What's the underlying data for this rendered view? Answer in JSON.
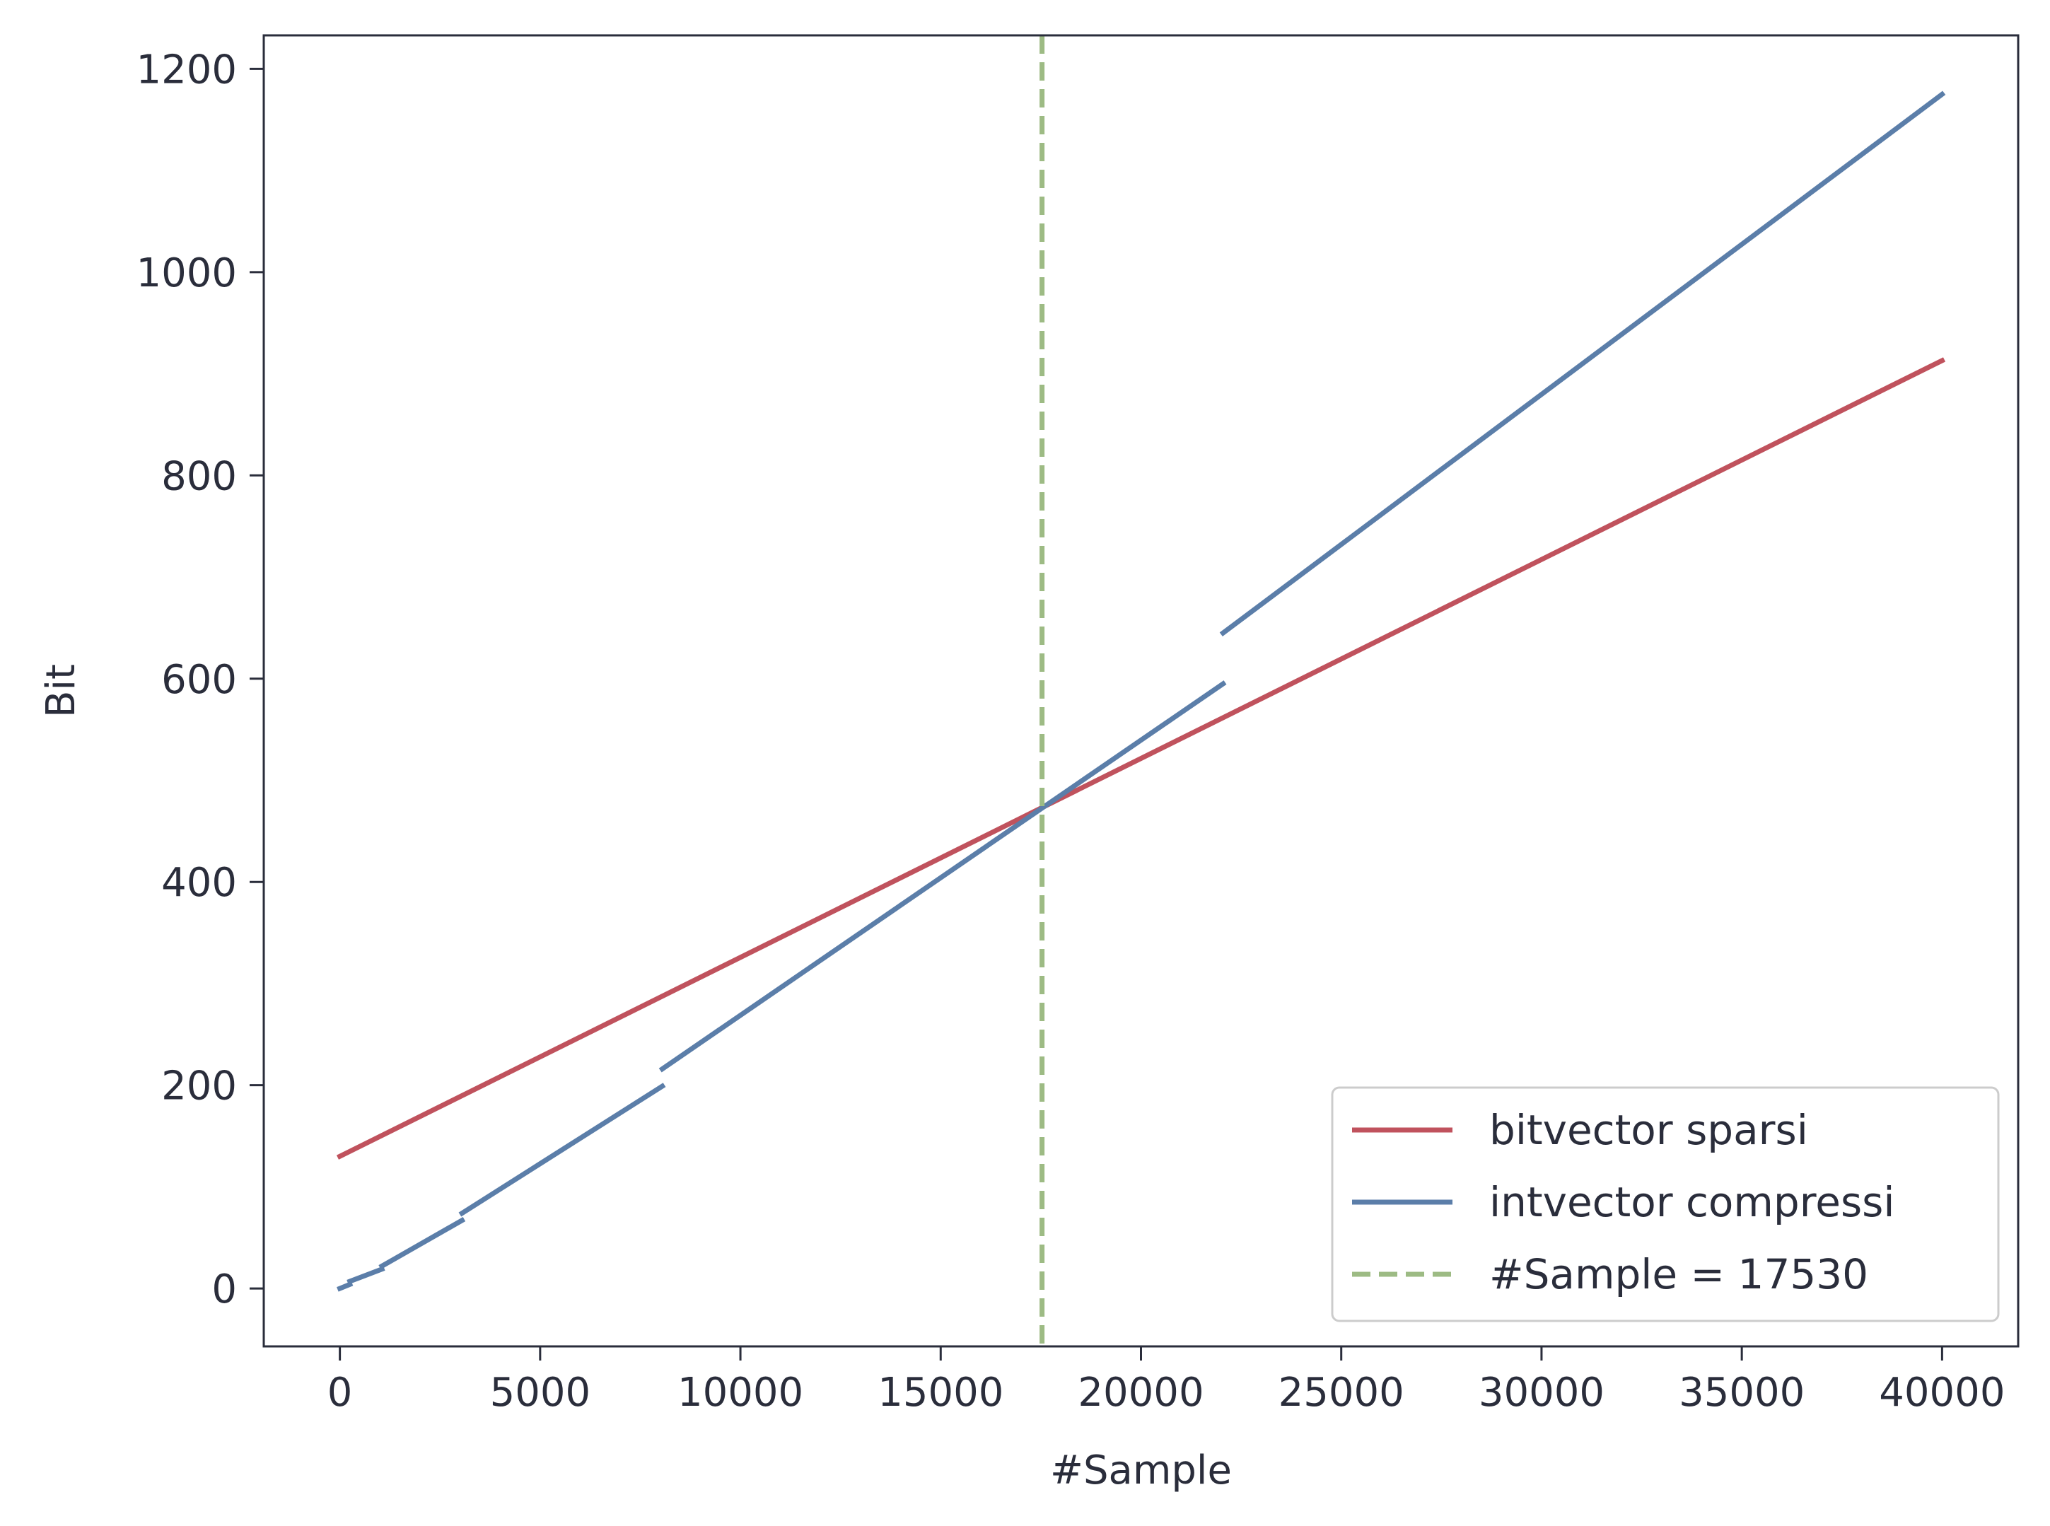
{
  "chart_data": {
    "type": "line",
    "title": "",
    "xlabel": "#Sample",
    "ylabel": "Bit",
    "xlim": [
      -1900,
      41900
    ],
    "ylim": [
      -57,
      1233
    ],
    "xticks": [
      0,
      5000,
      10000,
      15000,
      20000,
      25000,
      30000,
      35000,
      40000
    ],
    "yticks": [
      0,
      200,
      400,
      600,
      800,
      1000,
      1200
    ],
    "grid": false,
    "legend_position": "bottom-right",
    "series": [
      {
        "name": "bitvector sparsi",
        "color": "#c0525d",
        "style": "solid",
        "segments": [
          [
            [
              0,
              130
            ],
            [
              40000,
              913
            ]
          ]
        ]
      },
      {
        "name": "intvector compressi",
        "color": "#5b7ea9",
        "style": "solid",
        "segments": [
          [
            [
              0,
              0
            ],
            [
              250,
              4
            ]
          ],
          [
            [
              250,
              7
            ],
            [
              1050,
              19
            ]
          ],
          [
            [
              1050,
              22
            ],
            [
              3050,
              67
            ]
          ],
          [
            [
              3050,
              74
            ],
            [
              8050,
              199
            ]
          ],
          [
            [
              8050,
              216
            ],
            [
              22050,
              595
            ]
          ],
          [
            [
              22050,
              645
            ],
            [
              40000,
              1175
            ]
          ]
        ]
      },
      {
        "name": "#Sample = 17530",
        "color": "#9dbb84",
        "style": "dashed",
        "vline_x": 17530
      }
    ]
  }
}
